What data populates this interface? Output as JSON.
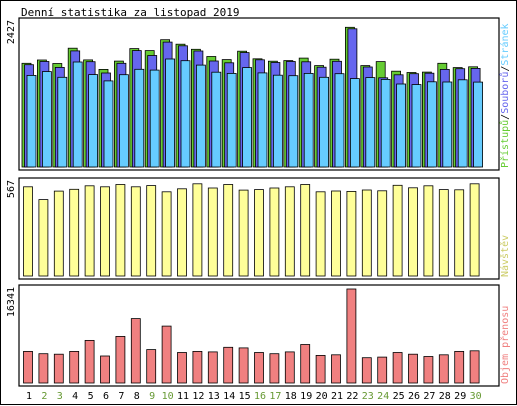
{
  "chart_data": {
    "type": "bar",
    "title": "Denní statistika za listopad 2019",
    "days": [
      "1",
      "2",
      "3",
      "4",
      "5",
      "6",
      "7",
      "8",
      "9",
      "10",
      "11",
      "12",
      "13",
      "14",
      "15",
      "16",
      "17",
      "18",
      "19",
      "20",
      "21",
      "22",
      "23",
      "24",
      "25",
      "26",
      "27",
      "28",
      "29",
      "30"
    ],
    "weekend_days": [
      "2",
      "3",
      "9",
      "10",
      "16",
      "17",
      "23",
      "24",
      "30"
    ],
    "colors": {
      "hits": "#66cc33",
      "files": "#6666ee",
      "pages": "#66ccff",
      "visits": "#ffff99",
      "kbytes": "#f08080",
      "weekday_label": "#000000",
      "weekend_label": "#669933"
    },
    "panels": [
      {
        "id": "top",
        "ymax_label": "2427",
        "right_labels": [
          {
            "text": "Přístupů",
            "color": "#66cc33"
          },
          {
            "text": "/",
            "color": "#000000"
          },
          {
            "text": "Souborů",
            "color": "#6666ee"
          },
          {
            "text": "/",
            "color": "#000000"
          },
          {
            "text": "Stránek",
            "color": "#66ccff"
          }
        ],
        "ymax": 2427,
        "series": [
          {
            "key": "hits",
            "values": [
              1735,
              1791,
              1733,
              1988,
              1793,
              1634,
              1773,
              1982,
              1949,
              2130,
              2056,
              1970,
              1849,
              1797,
              1938,
              1811,
              1771,
              1781,
              1823,
              1697,
              1804,
              2339,
              1697,
              1764,
              1603,
              1582,
              1589,
              1735,
              1663,
              1677
            ]
          },
          {
            "key": "files",
            "values": [
              1713,
              1766,
              1667,
              1944,
              1762,
              1573,
              1735,
              1948,
              1867,
              2090,
              2029,
              1942,
              1775,
              1744,
              1915,
              1794,
              1749,
              1766,
              1760,
              1671,
              1770,
              2313,
              1674,
              1493,
              1543,
              1562,
              1570,
              1634,
              1645,
              1650
            ]
          },
          {
            "key": "pages",
            "values": [
              1533,
              1597,
              1501,
              1758,
              1547,
              1441,
              1545,
              1636,
              1622,
              1808,
              1779,
              1706,
              1587,
              1566,
              1664,
              1575,
              1536,
              1529,
              1566,
              1501,
              1561,
              1480,
              1497,
              1467,
              1389,
              1379,
              1426,
              1423,
              1460,
              1421
            ]
          }
        ]
      },
      {
        "id": "middle",
        "ymax_label": "567",
        "right_labels": [
          {
            "text": "Návštěv",
            "color": "#cccc66"
          }
        ],
        "ymax": 567,
        "series": [
          {
            "key": "visits",
            "values": [
              538,
              461,
              512,
              523,
              544,
              538,
              552,
              538,
              545,
              508,
              526,
              556,
              531,
              552,
              518,
              521,
              531,
              538,
              552,
              508,
              513,
              510,
              519,
              514,
              547,
              532,
              544,
              521,
              520,
              556
            ]
          }
        ]
      },
      {
        "id": "bottom",
        "ymax_label": "16341",
        "right_labels": [
          {
            "text": "Objem přenosu",
            "color": "#f08080"
          }
        ],
        "ymax": 16341,
        "series": [
          {
            "key": "kbytes",
            "values": [
              5500,
              5100,
              5000,
              5500,
              7400,
              4700,
              8100,
              11200,
              5800,
              9900,
              5300,
              5500,
              5400,
              6200,
              6100,
              5300,
              5100,
              5400,
              6700,
              4800,
              4900,
              16341,
              4400,
              4500,
              5300,
              5000,
              4600,
              4900,
              5500,
              5600
            ]
          }
        ]
      }
    ]
  }
}
